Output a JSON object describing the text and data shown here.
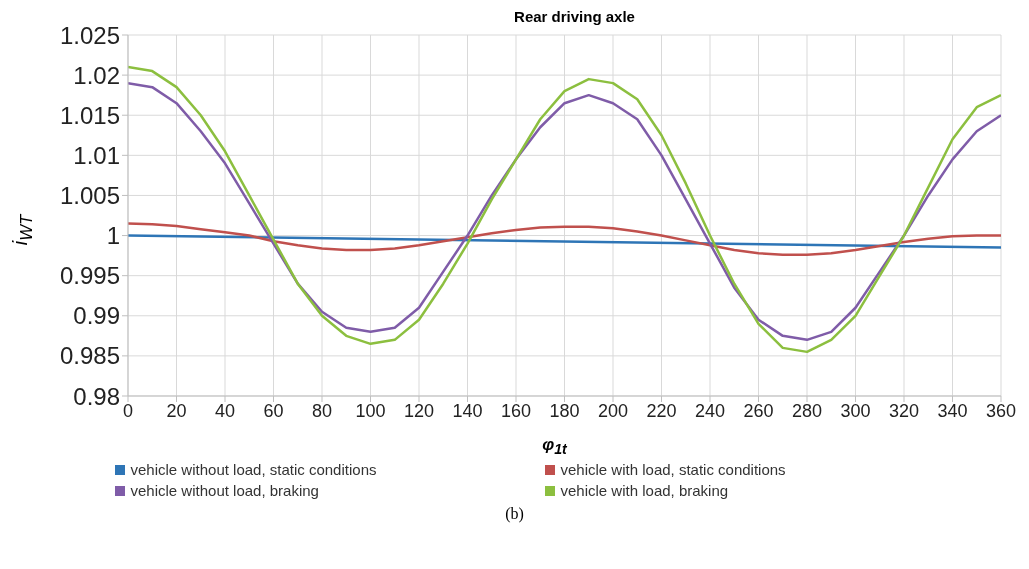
{
  "chart_data": {
    "type": "line",
    "title": "Rear driving axle",
    "xlabel": "φ$_{1t}$",
    "ylabel": "i$_{WT}$",
    "annotations": [
      "(b)"
    ],
    "xlim": [
      0,
      360
    ],
    "xticks": [
      0,
      20,
      40,
      60,
      80,
      100,
      120,
      140,
      160,
      180,
      200,
      220,
      240,
      260,
      280,
      300,
      320,
      340,
      360
    ],
    "ylim": [
      0.98,
      1.025
    ],
    "yticks": [
      0.98,
      0.985,
      0.99,
      0.995,
      1,
      1.005,
      1.01,
      1.015,
      1.02,
      1.025
    ],
    "grid": true,
    "legend": "bottom",
    "marker": "none",
    "line_style": "solid",
    "series": [
      {
        "name": "vehicle without load, static conditions",
        "color": "#2e75b6",
        "x": [
          0,
          360
        ],
        "values": [
          1.0,
          0.9985
        ]
      },
      {
        "name": "vehicle with load, static conditions",
        "color": "#c0504d",
        "x": [
          0,
          10,
          20,
          30,
          40,
          50,
          60,
          70,
          80,
          90,
          100,
          110,
          120,
          130,
          140,
          150,
          160,
          170,
          180,
          190,
          200,
          210,
          220,
          230,
          240,
          250,
          260,
          270,
          280,
          290,
          300,
          310,
          320,
          330,
          340,
          350,
          360
        ],
        "values": [
          1.0015,
          1.0014,
          1.0012,
          1.0008,
          1.0004,
          1.0,
          0.9993,
          0.9988,
          0.9984,
          0.9982,
          0.9982,
          0.9984,
          0.9988,
          0.9993,
          0.9998,
          1.0003,
          1.0007,
          1.001,
          1.0011,
          1.0011,
          1.0009,
          1.0005,
          1.0,
          0.9994,
          0.9988,
          0.9982,
          0.9978,
          0.9976,
          0.9976,
          0.9978,
          0.9982,
          0.9987,
          0.9992,
          0.9996,
          0.9999,
          1.0,
          1.0
        ]
      },
      {
        "name": "vehicle without load, braking",
        "color": "#7f5ca8",
        "x": [
          0,
          10,
          20,
          30,
          40,
          50,
          60,
          70,
          80,
          90,
          100,
          110,
          120,
          130,
          140,
          150,
          160,
          170,
          180,
          190,
          200,
          210,
          220,
          230,
          240,
          250,
          260,
          270,
          280,
          290,
          300,
          310,
          320,
          330,
          340,
          350,
          360
        ],
        "values": [
          1.019,
          1.0185,
          1.0165,
          1.013,
          1.009,
          1.004,
          0.999,
          0.994,
          0.9905,
          0.9885,
          0.988,
          0.9885,
          0.991,
          0.9955,
          1.0,
          1.005,
          1.0095,
          1.0135,
          1.0165,
          1.0175,
          1.0165,
          1.0145,
          1.01,
          1.0045,
          0.999,
          0.9935,
          0.9895,
          0.9875,
          0.987,
          0.988,
          0.991,
          0.9955,
          1.0,
          1.005,
          1.0095,
          1.013,
          1.015
        ]
      },
      {
        "name": "vehicle with load, braking",
        "color": "#8cbf3f",
        "x": [
          0,
          10,
          20,
          30,
          40,
          50,
          60,
          70,
          80,
          90,
          100,
          110,
          120,
          130,
          140,
          150,
          160,
          170,
          180,
          190,
          200,
          210,
          220,
          230,
          240,
          250,
          260,
          270,
          280,
          290,
          300,
          310,
          320,
          330,
          340,
          350,
          360
        ],
        "values": [
          1.021,
          1.0205,
          1.0185,
          1.015,
          1.0105,
          1.005,
          0.9995,
          0.994,
          0.99,
          0.9875,
          0.9865,
          0.987,
          0.9895,
          0.994,
          0.999,
          1.0045,
          1.0095,
          1.0145,
          1.018,
          1.0195,
          1.019,
          1.017,
          1.0125,
          1.0065,
          1.0,
          0.994,
          0.989,
          0.986,
          0.9855,
          0.987,
          0.99,
          0.995,
          1.0,
          1.006,
          1.012,
          1.016,
          1.0175
        ]
      }
    ]
  }
}
